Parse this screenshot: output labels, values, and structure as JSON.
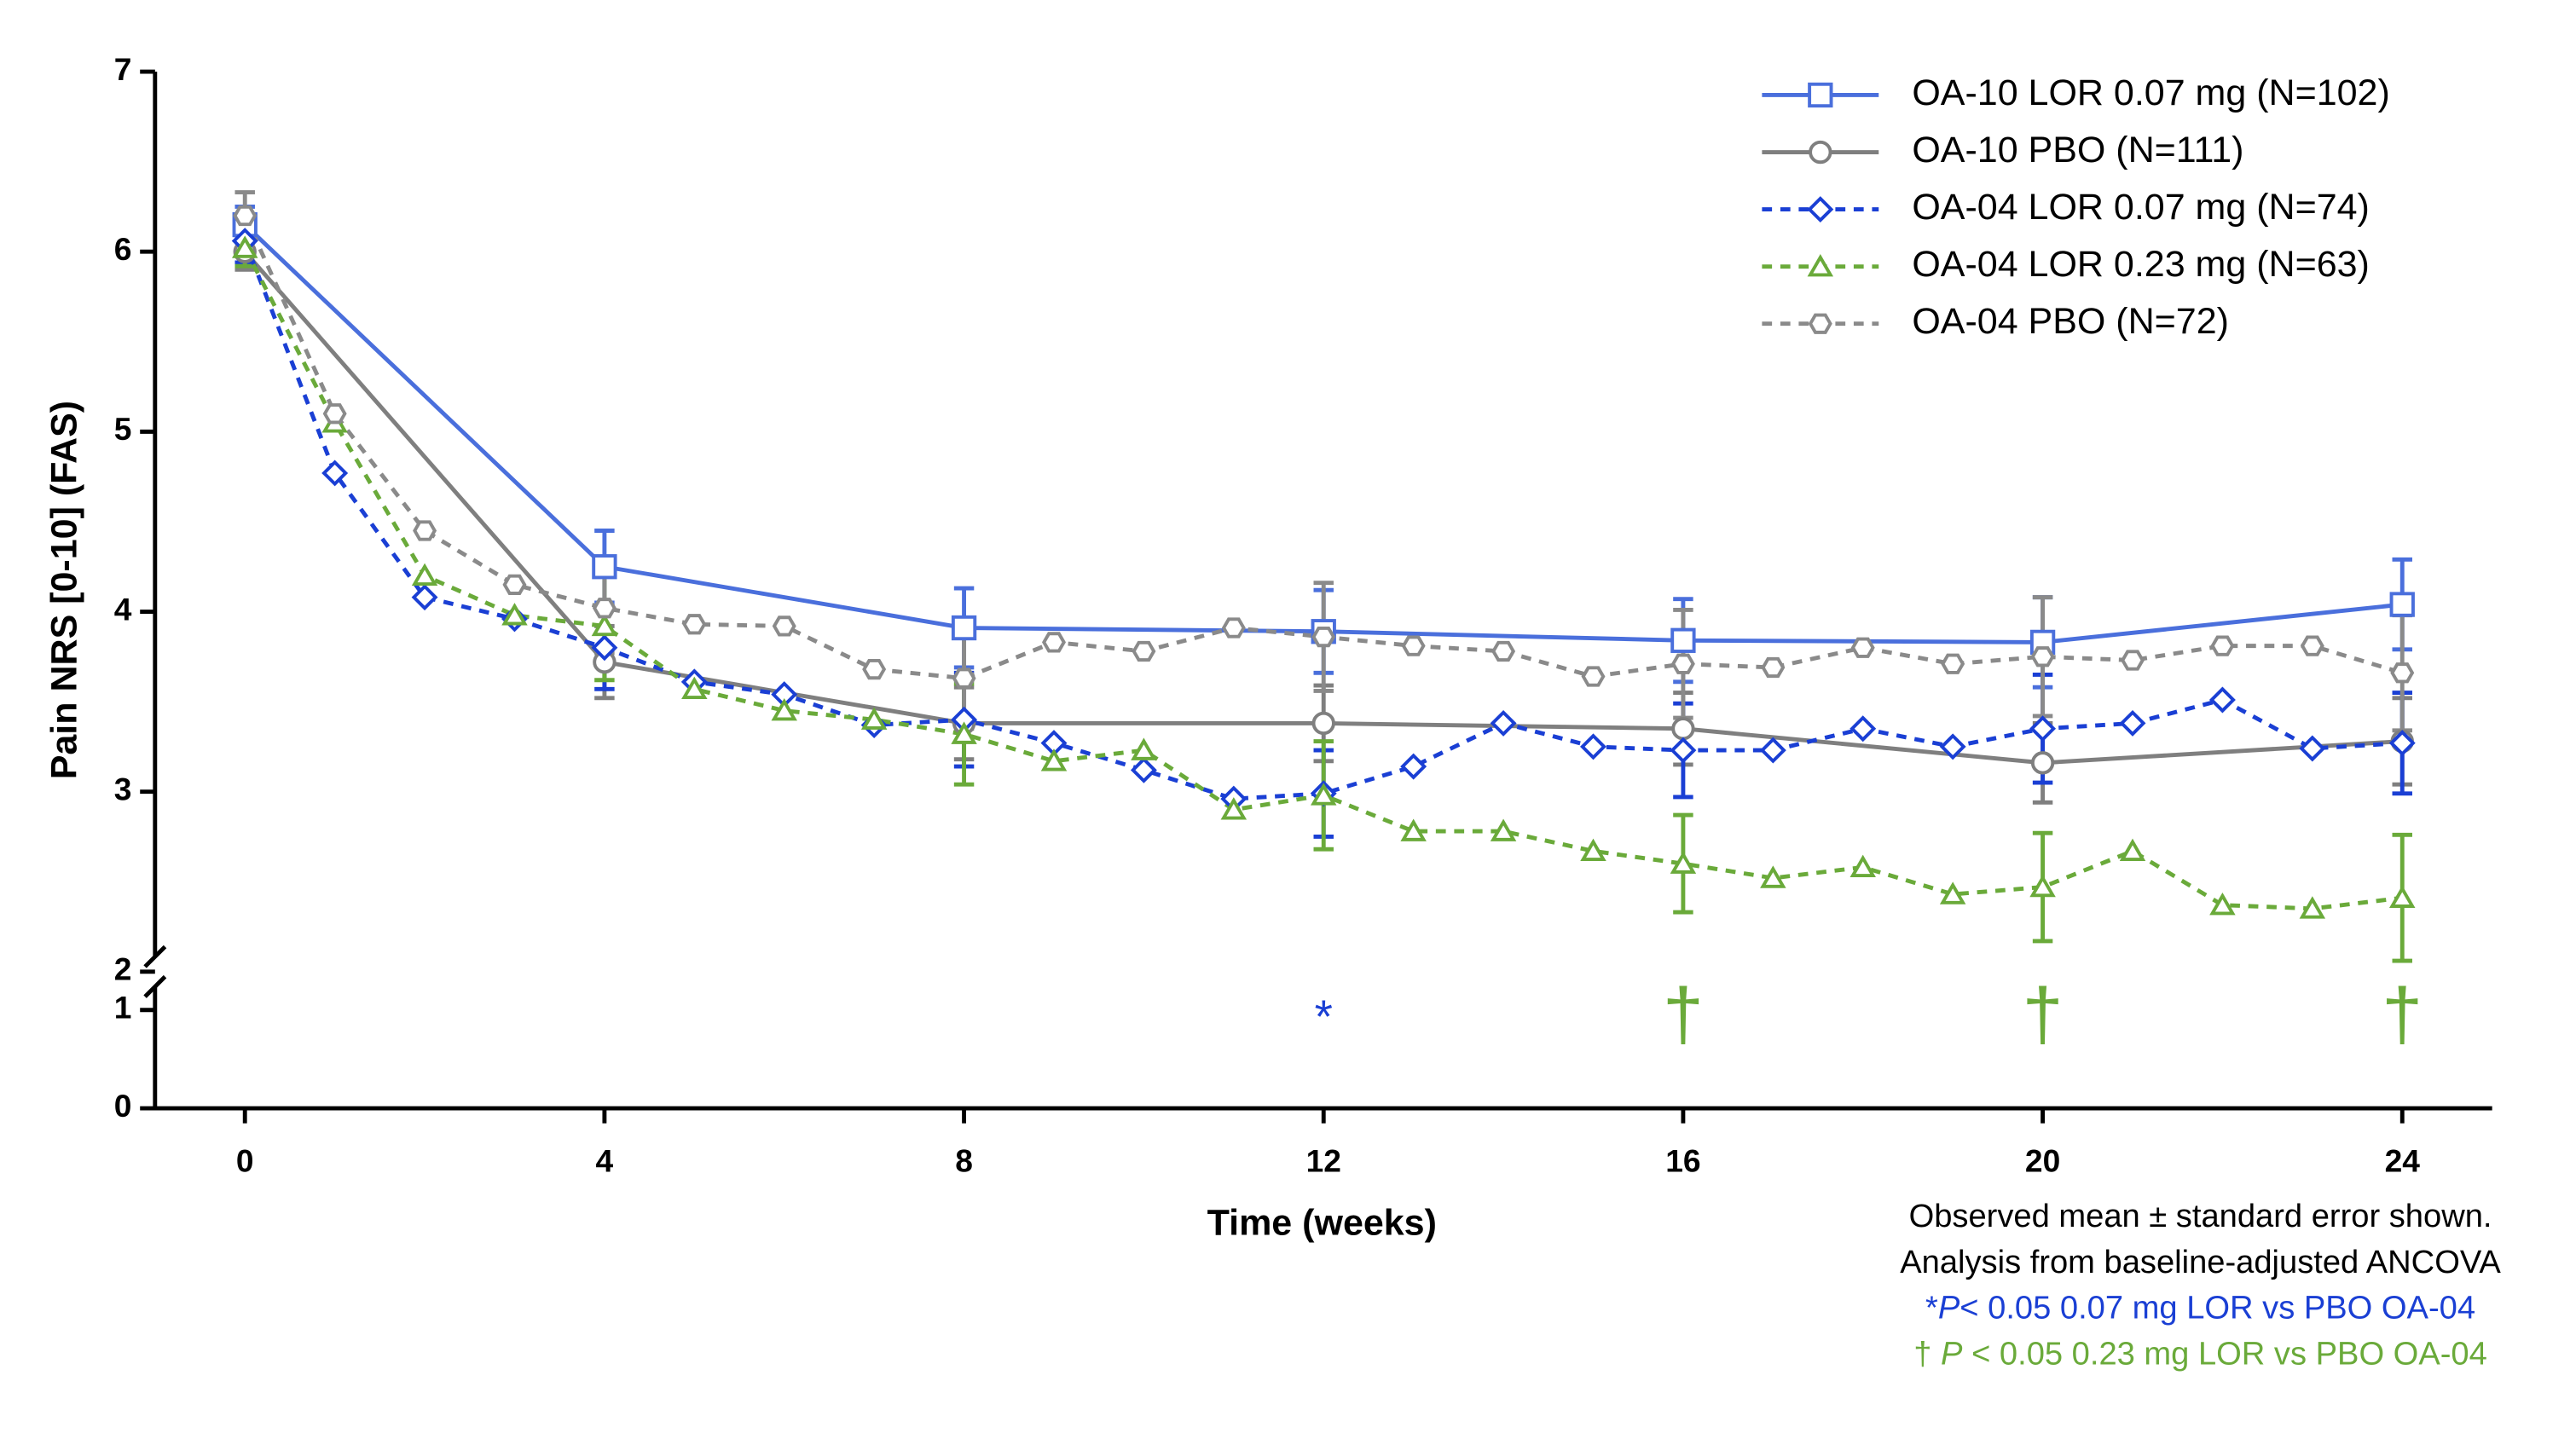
{
  "chart_data": {
    "type": "line",
    "xlabel": "Time (weeks)",
    "ylabel": "Pain NRS [0-10] (FAS)",
    "xlim": [
      -1,
      25
    ],
    "xticks": [
      0,
      4,
      8,
      12,
      16,
      20,
      24
    ],
    "ylim": [
      0,
      7
    ],
    "y_break": [
      1,
      2
    ],
    "yticks": [
      0,
      1,
      2,
      3,
      4,
      5,
      6,
      7
    ],
    "legend": "top-right",
    "series": [
      {
        "name": "OA-10 LOR 0.07 mg (N=102)",
        "color": "#4a6fdc",
        "marker": "square",
        "dashed": false,
        "x": [
          0,
          4,
          8,
          12,
          16,
          20,
          24
        ],
        "values": [
          6.15,
          4.25,
          3.91,
          3.89,
          3.84,
          3.83,
          4.04
        ],
        "errors": [
          0.1,
          0.2,
          0.22,
          0.23,
          0.23,
          0.25,
          0.25
        ]
      },
      {
        "name": "OA-10 PBO (N=111)",
        "color": "#7f7f7f",
        "marker": "circle",
        "dashed": false,
        "x": [
          0,
          4,
          8,
          12,
          16,
          20,
          24
        ],
        "values": [
          6.0,
          3.72,
          3.38,
          3.38,
          3.35,
          3.16,
          3.28
        ],
        "errors": [
          0.1,
          0.2,
          0.2,
          0.21,
          0.2,
          0.22,
          0.24
        ]
      },
      {
        "name": "OA-04 LOR 0.07 mg (N=74)",
        "color": "#1a3fd4",
        "marker": "diamond",
        "dashed": true,
        "x": [
          0,
          1,
          2,
          3,
          4,
          5,
          6,
          7,
          8,
          9,
          10,
          11,
          12,
          13,
          14,
          15,
          16,
          17,
          18,
          19,
          20,
          21,
          22,
          23,
          24
        ],
        "values": [
          6.06,
          4.77,
          4.08,
          3.96,
          3.8,
          3.61,
          3.54,
          3.37,
          3.4,
          3.27,
          3.12,
          2.96,
          2.99,
          3.14,
          3.38,
          3.25,
          3.23,
          3.23,
          3.35,
          3.25,
          3.35,
          3.38,
          3.51,
          3.24,
          3.27
        ],
        "errors": [
          0.12,
          null,
          null,
          null,
          0.23,
          null,
          null,
          null,
          0.26,
          null,
          null,
          null,
          0.24,
          null,
          null,
          null,
          0.26,
          null,
          null,
          null,
          0.3,
          null,
          null,
          null,
          0.28
        ]
      },
      {
        "name": "OA-04 LOR 0.23 mg (N=63)",
        "color": "#6aaa3a",
        "marker": "triangle",
        "dashed": true,
        "x": [
          0,
          1,
          2,
          3,
          4,
          5,
          6,
          7,
          8,
          9,
          10,
          11,
          12,
          13,
          14,
          15,
          16,
          17,
          18,
          19,
          20,
          21,
          22,
          23,
          24
        ],
        "values": [
          6.02,
          5.05,
          4.2,
          3.98,
          3.92,
          3.57,
          3.45,
          3.4,
          3.32,
          3.17,
          3.23,
          2.9,
          2.98,
          2.78,
          2.78,
          2.67,
          2.6,
          2.52,
          2.58,
          2.43,
          2.47,
          2.67,
          2.37,
          2.35,
          2.41
        ],
        "errors": [
          0.1,
          null,
          null,
          null,
          0.3,
          null,
          null,
          null,
          0.28,
          null,
          null,
          null,
          0.3,
          null,
          null,
          null,
          0.27,
          null,
          null,
          null,
          0.3,
          null,
          null,
          null,
          0.35
        ]
      },
      {
        "name": "OA-04 PBO (N=72)",
        "color": "#8a8a8a",
        "marker": "hexagon",
        "dashed": true,
        "x": [
          0,
          1,
          2,
          3,
          4,
          5,
          6,
          7,
          8,
          9,
          10,
          11,
          12,
          13,
          14,
          15,
          16,
          17,
          18,
          19,
          20,
          21,
          22,
          23,
          24
        ],
        "values": [
          6.2,
          5.1,
          4.45,
          4.15,
          4.02,
          3.93,
          3.92,
          3.68,
          3.63,
          3.83,
          3.78,
          3.91,
          3.86,
          3.81,
          3.78,
          3.64,
          3.71,
          3.69,
          3.8,
          3.71,
          3.75,
          3.73,
          3.81,
          3.81,
          3.66
        ],
        "errors": [
          0.13,
          null,
          null,
          null,
          0.25,
          null,
          null,
          null,
          0.28,
          null,
          null,
          null,
          0.3,
          null,
          null,
          null,
          0.3,
          null,
          null,
          null,
          0.33,
          null,
          null,
          null,
          0.32
        ]
      }
    ],
    "annotations": [
      {
        "text": "*",
        "x": 12,
        "color": "#1a3fd4"
      },
      {
        "text": "†",
        "x": 16,
        "color": "#6aaa3a"
      },
      {
        "text": "†",
        "x": 20,
        "color": "#6aaa3a"
      },
      {
        "text": "†",
        "x": 24,
        "color": "#6aaa3a"
      }
    ],
    "footnotes": [
      {
        "color": "#000000",
        "parts": [
          {
            "text": "Observed mean ± standard error shown."
          }
        ]
      },
      {
        "color": "#000000",
        "parts": [
          {
            "text": "Analysis from baseline-adjusted ANCOVA"
          }
        ]
      },
      {
        "color": "#1a3fd4",
        "parts": [
          {
            "text": "*"
          },
          {
            "text": "P",
            "italic": true
          },
          {
            "text": "< 0.05 0.07 mg LOR vs PBO OA-04"
          }
        ]
      },
      {
        "color": "#6aaa3a",
        "parts": [
          {
            "text": "† "
          },
          {
            "text": "P",
            "italic": true
          },
          {
            "text": " < 0.05 0.23 mg LOR vs PBO OA-04"
          }
        ]
      }
    ]
  }
}
